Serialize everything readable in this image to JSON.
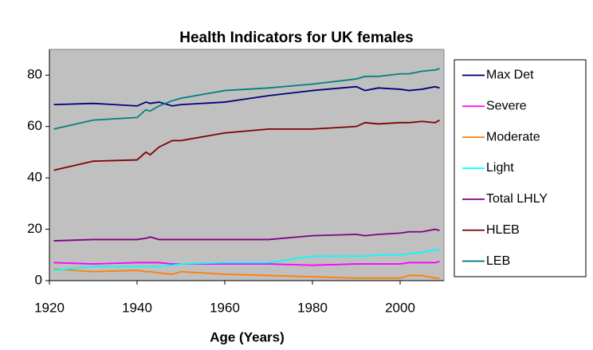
{
  "chart_data": {
    "type": "line",
    "title": "Health Indicators for UK females",
    "x_label": "Age (Years)",
    "x": [
      1921,
      1930,
      1940,
      1942,
      1943,
      1945,
      1948,
      1950,
      1960,
      1970,
      1980,
      1990,
      1992,
      1995,
      2000,
      2002,
      2005,
      2008,
      2009
    ],
    "series": [
      {
        "name": "Max Det",
        "color": "#000080",
        "values": [
          68.5,
          69,
          68,
          69.5,
          69,
          69.5,
          68,
          68.5,
          69.5,
          72,
          74,
          75.5,
          74,
          75,
          74.5,
          74,
          74.5,
          75.5,
          75
        ]
      },
      {
        "name": "Severe",
        "color": "#ff00ff",
        "values": [
          7,
          6.5,
          7,
          7,
          7,
          7,
          6.5,
          6.5,
          6.5,
          6.5,
          6,
          6.5,
          6.5,
          6.5,
          6.5,
          7,
          7,
          7,
          7.5
        ]
      },
      {
        "name": "Moderate",
        "color": "#ff7f00",
        "values": [
          4.5,
          3.5,
          4,
          3.5,
          3.5,
          3,
          2.5,
          3.5,
          2.5,
          2,
          1.5,
          1,
          1,
          1,
          1,
          2,
          2,
          1,
          1
        ]
      },
      {
        "name": "Light",
        "color": "#00ffff",
        "values": [
          4,
          5.5,
          5.5,
          5.5,
          5.5,
          5.5,
          6,
          6.5,
          7,
          7,
          9.5,
          9.5,
          9.5,
          10,
          10,
          10.5,
          11,
          12,
          11.5
        ]
      },
      {
        "name": "Total LHLY",
        "color": "#800080",
        "values": [
          15.5,
          16,
          16,
          16.5,
          17,
          16,
          16,
          16,
          16,
          16,
          17.5,
          18,
          17.5,
          18,
          18.5,
          19,
          19,
          20,
          19.5
        ]
      },
      {
        "name": "HLEB",
        "color": "#800000",
        "values": [
          43,
          46.5,
          47,
          50,
          49,
          52,
          54.5,
          54.5,
          57.5,
          59,
          59,
          60,
          61.5,
          61,
          61.5,
          61.5,
          62,
          61.5,
          62.5
        ]
      },
      {
        "name": "LEB",
        "color": "#008080",
        "values": [
          59,
          62.5,
          63.5,
          66.5,
          66,
          68,
          70,
          71,
          74,
          75,
          76.5,
          78.5,
          79.5,
          79.5,
          80.5,
          80.5,
          81.5,
          82,
          82.5
        ]
      }
    ],
    "xlim": [
      1920,
      2010
    ],
    "xticks": [
      1920,
      1940,
      1960,
      1980,
      2000
    ],
    "ylim": [
      0,
      90
    ],
    "yticks": [
      0,
      20,
      40,
      60,
      80
    ],
    "plot_background": "#c0c0c0",
    "legend": "right"
  }
}
